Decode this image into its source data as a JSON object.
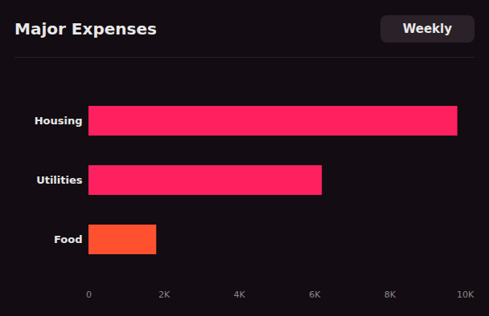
{
  "chart_data": {
    "type": "bar",
    "orientation": "horizontal",
    "title": "Major Expenses",
    "subtitle": "Weekly",
    "categories": [
      "Housing",
      "Utilities",
      "Food"
    ],
    "values": [
      9800,
      6200,
      1800
    ],
    "colors": [
      "#FF2060",
      "#FF2060",
      "#FF5030"
    ],
    "xlim": [
      0,
      10000
    ],
    "xticks": [
      0,
      {
        "value": 2000,
        "label": "2K"
      },
      {
        "value": 4000,
        "label": "4K"
      },
      {
        "value": 6000,
        "label": "6K"
      },
      {
        "value": 8000,
        "label": "8K"
      },
      {
        "value": 10000,
        "label": "10K"
      }
    ],
    "grid": false
  }
}
